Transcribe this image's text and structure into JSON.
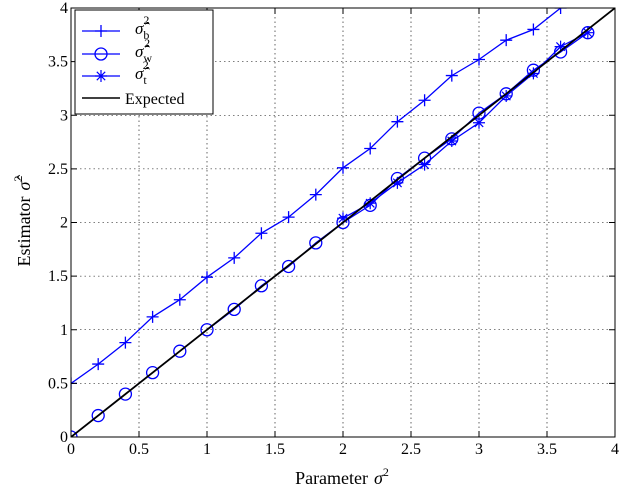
{
  "chart_data": {
    "type": "line",
    "title": "",
    "xlabel": "Parameter",
    "xlabel_symbol": "σ",
    "xlabel_sup": "2",
    "ylabel": "Estimator",
    "ylabel_symbol": "σ̂",
    "ylabel_sup": "2",
    "xlim": [
      0,
      4
    ],
    "ylim": [
      0,
      4
    ],
    "xticks": [
      "0",
      "0.5",
      "1",
      "1.5",
      "2",
      "2.5",
      "3",
      "3.5",
      "4"
    ],
    "yticks": [
      "0",
      "0.5",
      "1",
      "1.5",
      "2",
      "2.5",
      "3",
      "3.5",
      "4"
    ],
    "grid": true,
    "legend_position": "top-left",
    "series": [
      {
        "name": "σ̂",
        "sub": "b",
        "sup": "2",
        "marker": "plus",
        "color": "#0000ff",
        "x": [
          0,
          0.2,
          0.4,
          0.6,
          0.8,
          1.0,
          1.2,
          1.4,
          1.6,
          1.8,
          2.0,
          2.2,
          2.4,
          2.6,
          2.8,
          3.0,
          3.2,
          3.4,
          3.6
        ],
        "y": [
          0.5,
          0.68,
          0.88,
          1.12,
          1.28,
          1.49,
          1.67,
          1.9,
          2.05,
          2.26,
          2.51,
          2.69,
          2.94,
          3.14,
          3.37,
          3.52,
          3.7,
          3.8,
          4.0
        ]
      },
      {
        "name": "σ̂",
        "sub": "w",
        "sup": "2",
        "marker": "circle",
        "color": "#0000ff",
        "x": [
          0,
          0.2,
          0.4,
          0.6,
          0.8,
          1.0,
          1.2,
          1.4,
          1.6,
          1.8,
          2.0,
          2.2,
          2.4,
          2.6,
          2.8,
          3.0,
          3.2,
          3.4,
          3.6,
          3.8
        ],
        "y": [
          0.0,
          0.2,
          0.4,
          0.6,
          0.8,
          1.0,
          1.19,
          1.41,
          1.59,
          1.81,
          2.0,
          2.16,
          2.41,
          2.6,
          2.78,
          3.02,
          3.2,
          3.42,
          3.59,
          3.77
        ]
      },
      {
        "name": "σ̂",
        "sub": "t",
        "sup": "2",
        "marker": "star",
        "color": "#0000ff",
        "x": [
          2.0,
          2.2,
          2.4,
          2.6,
          2.8,
          3.0,
          3.2,
          3.4,
          3.6,
          3.8
        ],
        "y": [
          2.04,
          2.18,
          2.37,
          2.54,
          2.76,
          2.93,
          3.18,
          3.39,
          3.64,
          3.77
        ]
      },
      {
        "name": "Expected",
        "marker": "none",
        "color": "#000000",
        "x": [
          0,
          4
        ],
        "y": [
          0,
          4
        ]
      }
    ]
  }
}
